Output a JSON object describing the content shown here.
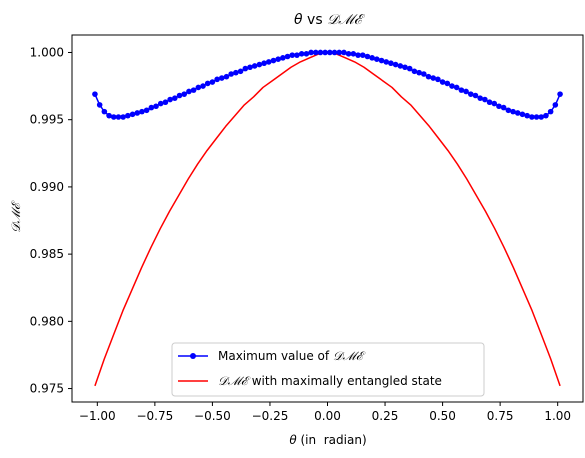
{
  "chart_data": {
    "type": "line",
    "title": {
      "theta": "θ",
      "vs": " vs ",
      "dme": "𝒟ℳℰ"
    },
    "xlabel": {
      "theta": "θ",
      "rest": " (in  radian)"
    },
    "ylabel": "𝒟ℳℰ",
    "xlim": [
      -1.11,
      1.11
    ],
    "ylim": [
      0.974,
      1.0013
    ],
    "xticks": [
      -1.0,
      -0.75,
      -0.5,
      -0.25,
      0.0,
      0.25,
      0.5,
      0.75,
      1.0
    ],
    "xtick_labels": [
      "−1.00",
      "−0.75",
      "−0.50",
      "−0.25",
      "0.00",
      "0.25",
      "0.50",
      "0.75",
      "1.00"
    ],
    "yticks": [
      0.975,
      0.98,
      0.985,
      0.99,
      0.995,
      1.0
    ],
    "ytick_labels": [
      "0.975",
      "0.980",
      "0.985",
      "0.990",
      "0.995",
      "1.000"
    ],
    "grid": false,
    "legend_position": "lower-center",
    "series": [
      {
        "name": {
          "prefix": "Maximum value of ",
          "dme": "𝒟ℳℰ"
        },
        "color": "#0000ff",
        "marker": "circle",
        "x": [
          -1.0104,
          -0.9898,
          -0.9694,
          -0.949,
          -0.9286,
          -0.9082,
          -0.8878,
          -0.8673,
          -0.8469,
          -0.8265,
          -0.8061,
          -0.7857,
          -0.7653,
          -0.7449,
          -0.7245,
          -0.7041,
          -0.6837,
          -0.6633,
          -0.6429,
          -0.6224,
          -0.602,
          -0.5816,
          -0.5612,
          -0.5408,
          -0.5204,
          -0.5,
          -0.4796,
          -0.4592,
          -0.4388,
          -0.4184,
          -0.398,
          -0.3776,
          -0.3571,
          -0.3367,
          -0.3163,
          -0.2959,
          -0.2755,
          -0.2551,
          -0.2347,
          -0.2143,
          -0.1939,
          -0.1735,
          -0.1531,
          -0.1327,
          -0.1122,
          -0.0918,
          -0.0714,
          -0.051,
          -0.0306,
          -0.0102,
          0.0102,
          0.0306,
          0.051,
          0.0714,
          0.0918,
          0.1122,
          0.1327,
          0.1531,
          0.1735,
          0.1939,
          0.2143,
          0.2347,
          0.2551,
          0.2755,
          0.2959,
          0.3163,
          0.3367,
          0.3571,
          0.3776,
          0.398,
          0.4184,
          0.4388,
          0.4592,
          0.4796,
          0.5,
          0.5204,
          0.5408,
          0.5612,
          0.5816,
          0.602,
          0.6224,
          0.6429,
          0.6633,
          0.6837,
          0.7041,
          0.7245,
          0.7449,
          0.7653,
          0.7857,
          0.8061,
          0.8265,
          0.8469,
          0.8673,
          0.8878,
          0.9082,
          0.9286,
          0.949,
          0.9694,
          0.9898,
          1.0104
        ],
        "y": [
          0.9969,
          0.9961,
          0.9956,
          0.9953,
          0.9952,
          0.9952,
          0.9952,
          0.9953,
          0.9954,
          0.9955,
          0.9956,
          0.9957,
          0.9959,
          0.996,
          0.9962,
          0.9963,
          0.9965,
          0.9966,
          0.9968,
          0.9969,
          0.9971,
          0.9972,
          0.9974,
          0.9975,
          0.9977,
          0.9978,
          0.998,
          0.9981,
          0.9982,
          0.9984,
          0.9985,
          0.9986,
          0.9988,
          0.9989,
          0.999,
          0.9991,
          0.9992,
          0.9993,
          0.9994,
          0.9995,
          0.9996,
          0.9997,
          0.9998,
          0.9998,
          0.9999,
          0.9999,
          1.0,
          1.0,
          1.0,
          1.0,
          1.0,
          1.0,
          1.0,
          1.0,
          0.9999,
          0.9999,
          0.9998,
          0.9998,
          0.9997,
          0.9996,
          0.9995,
          0.9994,
          0.9993,
          0.9992,
          0.9991,
          0.999,
          0.9989,
          0.9988,
          0.9986,
          0.9985,
          0.9984,
          0.9982,
          0.9981,
          0.998,
          0.9978,
          0.9977,
          0.9975,
          0.9974,
          0.9972,
          0.9971,
          0.9969,
          0.9968,
          0.9966,
          0.9965,
          0.9963,
          0.9962,
          0.996,
          0.9959,
          0.9957,
          0.9956,
          0.9955,
          0.9954,
          0.9953,
          0.9952,
          0.9952,
          0.9952,
          0.9953,
          0.9956,
          0.9961,
          0.9969
        ]
      },
      {
        "name": {
          "dme": "𝒟ℳℰ",
          "suffix": " with maximally entangled state"
        },
        "color": "#ff0000",
        "marker": "none",
        "x": [
          -1.0104,
          -0.9698,
          -0.9293,
          -0.8887,
          -0.8481,
          -0.8076,
          -0.767,
          -0.7264,
          -0.6859,
          -0.6453,
          -0.6048,
          -0.5642,
          -0.5236,
          -0.4831,
          -0.4425,
          -0.4019,
          -0.3614,
          -0.3208,
          -0.2803,
          -0.2397,
          -0.1991,
          -0.1586,
          -0.118,
          -0.0774,
          -0.0369,
          0.0,
          0.0369,
          0.0774,
          0.118,
          0.1586,
          0.1991,
          0.2397,
          0.2803,
          0.3208,
          0.3614,
          0.4019,
          0.4425,
          0.4831,
          0.5236,
          0.5642,
          0.6048,
          0.6453,
          0.6859,
          0.7264,
          0.767,
          0.8076,
          0.8481,
          0.8887,
          0.9293,
          0.9698,
          1.0104
        ],
        "y": [
          0.9752,
          0.9772,
          0.979,
          0.9808,
          0.9824,
          0.984,
          0.9855,
          0.9869,
          0.9882,
          0.9894,
          0.9906,
          0.9917,
          0.9927,
          0.9936,
          0.9945,
          0.9953,
          0.9961,
          0.9967,
          0.9974,
          0.9979,
          0.9984,
          0.9989,
          0.9993,
          0.9996,
          0.9999,
          1.0,
          0.9999,
          0.9996,
          0.9993,
          0.9989,
          0.9984,
          0.9979,
          0.9974,
          0.9967,
          0.9961,
          0.9953,
          0.9945,
          0.9936,
          0.9927,
          0.9917,
          0.9906,
          0.9894,
          0.9882,
          0.9869,
          0.9855,
          0.984,
          0.9824,
          0.9808,
          0.979,
          0.9772,
          0.9752
        ]
      }
    ]
  }
}
